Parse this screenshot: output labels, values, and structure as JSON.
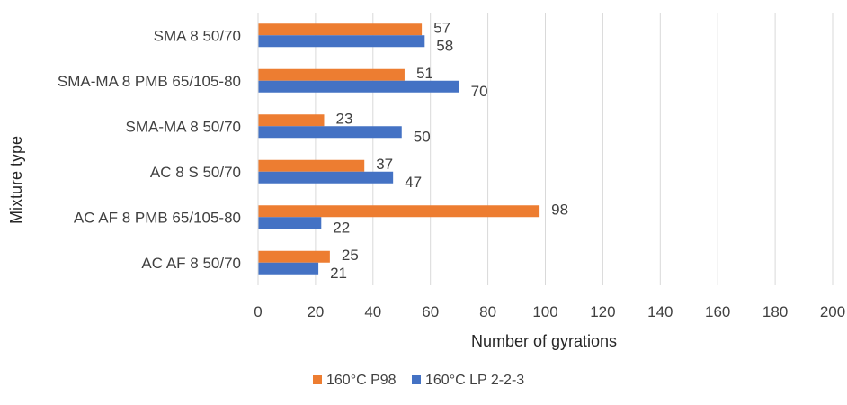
{
  "chart_data": {
    "type": "bar",
    "orientation": "horizontal",
    "categories": [
      "SMA 8 50/70",
      "SMA-MA 8 PMB 65/105-80",
      "SMA-MA 8 50/70",
      "AC 8 S 50/70",
      "AC AF 8 PMB 65/105-80",
      "AC AF 8 50/70"
    ],
    "series": [
      {
        "name": "160°C P98",
        "color": "#ED7D31",
        "values": [
          57,
          51,
          23,
          37,
          98,
          25
        ]
      },
      {
        "name": "160°C LP 2-2-3",
        "color": "#4472C4",
        "values": [
          58,
          70,
          50,
          47,
          22,
          21
        ]
      }
    ],
    "xlabel": "Number of gyrations",
    "ylabel": "Mixture type",
    "xlim": [
      0,
      200
    ],
    "xticks": [
      0,
      20,
      40,
      60,
      80,
      100,
      120,
      140,
      160,
      180,
      200
    ],
    "grid": "vertical",
    "legend_position": "bottom-center",
    "data_labels": true
  }
}
